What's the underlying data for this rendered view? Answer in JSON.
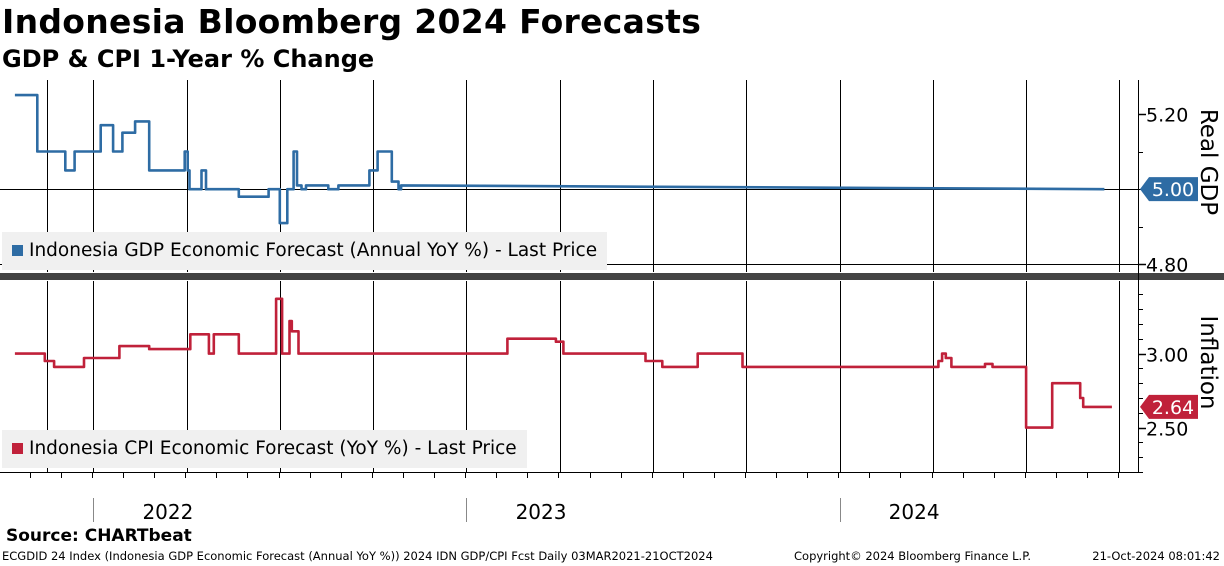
{
  "header": {
    "title": "Indonesia Bloomberg 2024 Forecasts",
    "subtitle": "GDP & CPI 1-Year % Change"
  },
  "source": "Source: CHARTbeat",
  "footer": {
    "left": "ECGDID 24 Index (Indonesia GDP Economic Forecast (Annual YoY %)) 2024 IDN GDP/CPI Fcst  Daily 03MAR2021-21OCT2024",
    "center": "Copyright© 2024 Bloomberg Finance L.P.",
    "right": "21-Oct-2024 08:01:42"
  },
  "colors": {
    "gdp": "#2e6ca4",
    "cpi": "#c0213a",
    "separator": "#444444"
  },
  "chart_data": [
    {
      "type": "line",
      "panel": "top",
      "ylabel": "Real GDP",
      "ylim": [
        4.78,
        5.29
      ],
      "yticks": [
        4.8,
        5.2
      ],
      "ytick_labels": [
        "4.80",
        "5.20"
      ],
      "last_value_label": "5.00",
      "last_value": 5.0,
      "legend": "Indonesia GDP Economic Forecast (Annual YoY %) - Last Price",
      "x_start": 2021.79,
      "x": [
        2021.79,
        2021.85,
        2021.85,
        2021.925,
        2021.925,
        2021.95,
        2021.95,
        2022.02,
        2022.02,
        2022.053,
        2022.053,
        2022.078,
        2022.078,
        2022.112,
        2022.112,
        2022.15,
        2022.15,
        2022.245,
        2022.245,
        2022.253,
        2022.253,
        2022.258,
        2022.258,
        2022.29,
        2022.29,
        2022.302,
        2022.302,
        2022.39,
        2022.39,
        2022.47,
        2022.47,
        2022.5,
        2022.5,
        2022.52,
        2022.52,
        2022.537,
        2022.537,
        2022.546,
        2022.546,
        2022.558,
        2022.558,
        2022.57,
        2022.57,
        2022.63,
        2022.63,
        2022.657,
        2022.657,
        2022.74,
        2022.74,
        2022.762,
        2022.762,
        2022.8,
        2022.8,
        2022.818,
        2022.818,
        2022.825,
        2022.825,
        2024.71
      ],
      "y": [
        5.25,
        5.25,
        5.1,
        5.1,
        5.05,
        5.05,
        5.1,
        5.1,
        5.17,
        5.17,
        5.1,
        5.1,
        5.15,
        5.15,
        5.18,
        5.18,
        5.05,
        5.05,
        5.1,
        5.1,
        5.05,
        5.05,
        5.0,
        5.0,
        5.05,
        5.05,
        5.0,
        5.0,
        4.98,
        4.98,
        5.0,
        5.0,
        4.91,
        4.91,
        5.0,
        5.0,
        5.1,
        5.1,
        5.01,
        5.01,
        5.0,
        5.0,
        5.01,
        5.01,
        5.0,
        5.0,
        5.01,
        5.01,
        5.05,
        5.05,
        5.1,
        5.1,
        5.02,
        5.02,
        5.0,
        5.0,
        5.01,
        5.0
      ]
    },
    {
      "type": "line",
      "panel": "bottom",
      "ylabel": "Inflation",
      "ylim": [
        2.2,
        3.49
      ],
      "yticks": [
        2.5,
        3.0
      ],
      "ytick_labels": [
        "2.50",
        "3.00"
      ],
      "last_value_label": "2.64",
      "last_value": 2.64,
      "legend": "Indonesia CPI Economic Forecast (YoY %) - Last Price",
      "x_start": 2021.79,
      "x": [
        2021.79,
        2021.87,
        2021.87,
        2021.895,
        2021.895,
        2021.975,
        2021.975,
        2022.07,
        2022.07,
        2022.15,
        2022.15,
        2022.26,
        2022.26,
        2022.31,
        2022.31,
        2022.323,
        2022.323,
        2022.39,
        2022.39,
        2022.49,
        2022.49,
        2022.506,
        2022.506,
        2022.526,
        2022.526,
        2022.532,
        2022.532,
        2022.54,
        2022.54,
        2022.55,
        2022.55,
        2023.11,
        2023.11,
        2023.24,
        2023.24,
        2023.26,
        2023.26,
        2023.36,
        2023.36,
        2023.48,
        2023.48,
        2023.525,
        2023.525,
        2023.62,
        2023.62,
        2023.74,
        2023.74,
        2023.98,
        2023.98,
        2024.265,
        2024.265,
        2024.275,
        2024.275,
        2024.285,
        2024.285,
        2024.3,
        2024.3,
        2024.39,
        2024.39,
        2024.41,
        2024.41,
        2024.5,
        2024.5,
        2024.57,
        2024.57,
        2024.645,
        2024.645,
        2024.653,
        2024.653,
        2024.66,
        2024.66,
        2024.73
      ],
      "y": [
        3.0,
        3.0,
        2.95,
        2.95,
        2.91,
        2.91,
        2.97,
        2.97,
        3.05,
        3.05,
        3.03,
        3.03,
        3.13,
        3.13,
        3.0,
        3.0,
        3.13,
        3.13,
        3.0,
        3.0,
        3.37,
        3.37,
        3.0,
        3.0,
        3.22,
        3.22,
        3.15,
        3.15,
        3.15,
        3.15,
        3.0,
        3.0,
        3.1,
        3.1,
        3.08,
        3.08,
        3.0,
        3.0,
        3.0,
        3.0,
        2.95,
        2.95,
        2.91,
        2.91,
        3.0,
        3.0,
        2.91,
        2.91,
        2.91,
        2.91,
        2.95,
        2.95,
        3.0,
        3.0,
        2.97,
        2.97,
        2.91,
        2.91,
        2.93,
        2.93,
        2.91,
        2.91,
        2.5,
        2.5,
        2.8,
        2.8,
        2.7,
        2.7,
        2.64,
        2.64,
        2.64,
        2.64
      ]
    }
  ],
  "x_axis": {
    "labels": [
      "2022",
      "2023",
      "2024"
    ],
    "label_positions": [
      2022.2,
      2023.2,
      2024.2
    ],
    "major_ticks": [
      2022.0,
      2023.0,
      2024.0
    ],
    "range": [
      2021.75,
      2024.8
    ]
  }
}
